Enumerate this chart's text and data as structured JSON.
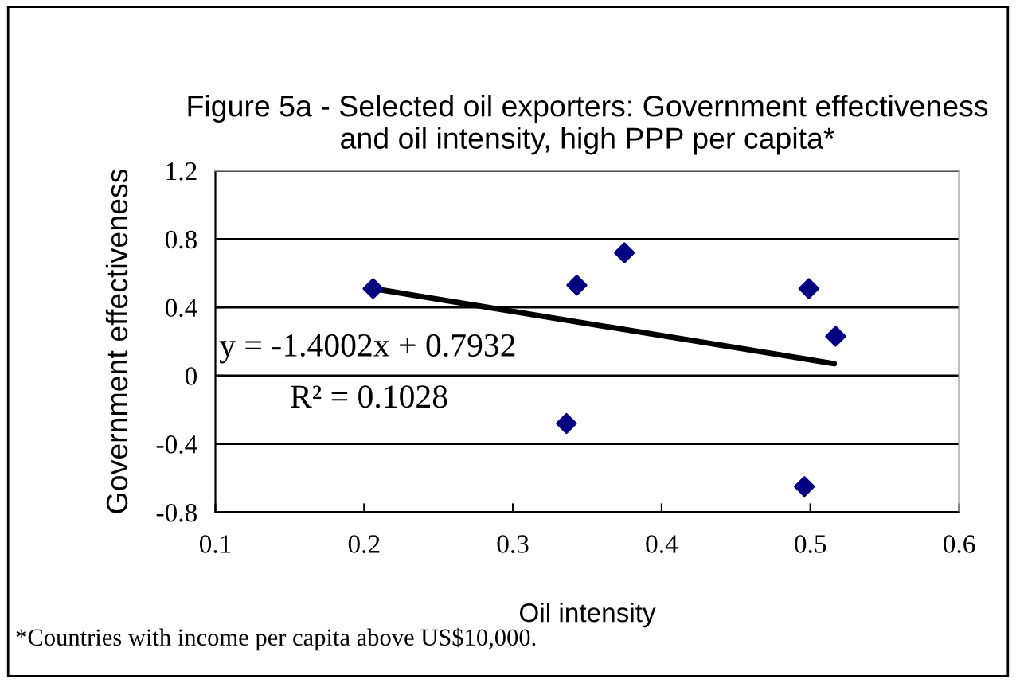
{
  "chart_data": {
    "type": "scatter",
    "title": "Figure 5a - Selected oil exporters: Government effectiveness and oil intensity, high PPP per capita*",
    "xlabel": "Oil intensity",
    "ylabel": "Government effectiveness",
    "series": [
      {
        "color": "#000080",
        "marker": "diamond",
        "x": [
          0.206,
          0.343,
          0.375,
          0.336,
          0.499,
          0.517,
          0.496
        ],
        "values": [
          0.51,
          0.53,
          0.72,
          -0.28,
          0.51,
          0.23,
          -0.65
        ]
      },
      {
        "type": "line",
        "color": "#000000",
        "marker": "none",
        "x": [
          0.206,
          0.516
        ],
        "values": [
          0.51,
          0.07
        ]
      }
    ],
    "annotations": [
      "y = -1.4002x + 0.7932",
      "R² = 0.1028",
      "*Countries with income per capita above US$10,000."
    ],
    "xlim": [
      0.1,
      0.6
    ],
    "xticks": [
      0.1,
      0.2,
      0.3,
      0.4,
      0.5,
      0.6
    ],
    "ylim": [
      -0.8,
      1.2
    ],
    "yticks": [
      -0.8,
      -0.4,
      0,
      0.4,
      0.8,
      1.2
    ],
    "grid": "y",
    "legend": false
  }
}
